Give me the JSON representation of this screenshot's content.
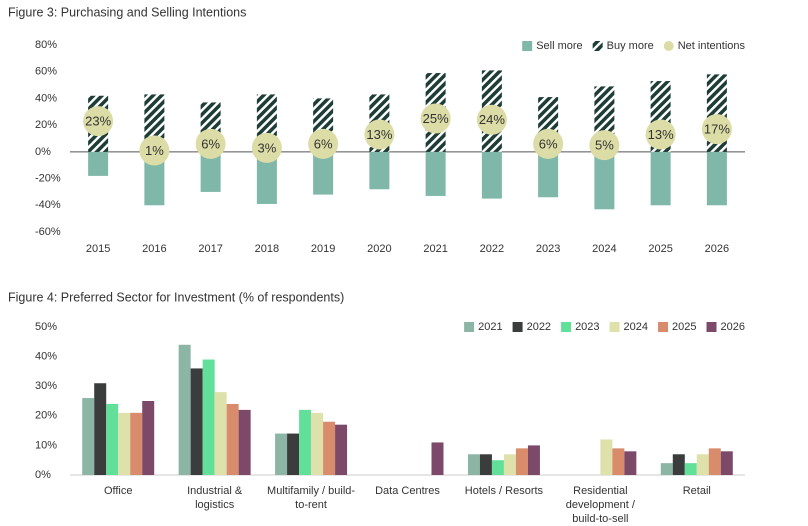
{
  "chart_data": [
    {
      "type": "bar",
      "title": "Figure 3: Purchasing and Selling Intentions",
      "stacked": true,
      "categories": [
        "2015",
        "2016",
        "2017",
        "2018",
        "2019",
        "2020",
        "2021",
        "2022",
        "2023",
        "2024",
        "2025",
        "2026"
      ],
      "series": [
        {
          "name": "Sell more",
          "color": "#7fb8a8",
          "values": [
            -18,
            -40,
            -30,
            -39,
            -32,
            -28,
            -33,
            -35,
            -34,
            -43,
            -40,
            -40
          ]
        },
        {
          "name": "Buy more",
          "color": "#1d3d36",
          "pattern": "hatch",
          "values": [
            42,
            43,
            37,
            43,
            40,
            43,
            59,
            61,
            41,
            49,
            53,
            58
          ]
        },
        {
          "name": "Net intentions",
          "color": "#dcdca6",
          "marker": "circle",
          "values": [
            23,
            1,
            6,
            3,
            6,
            13,
            25,
            24,
            6,
            5,
            13,
            17
          ],
          "value_labels": [
            "23%",
            "1%",
            "6%",
            "3%",
            "6%",
            "13%",
            "25%",
            "24%",
            "6%",
            "5%",
            "13%",
            "17%"
          ]
        }
      ],
      "ylim": [
        -60,
        80
      ],
      "yticks": [
        {
          "value": -60,
          "label": "-60%"
        },
        {
          "value": -40,
          "label": "-40%"
        },
        {
          "value": -20,
          "label": "-20%"
        },
        {
          "value": 0,
          "label": "0%"
        },
        {
          "value": 20,
          "label": "20%"
        },
        {
          "value": 40,
          "label": "40%"
        },
        {
          "value": 60,
          "label": "60%"
        },
        {
          "value": 80,
          "label": "80%"
        }
      ],
      "legend": "top-right"
    },
    {
      "type": "bar",
      "title": "Figure 4: Preferred Sector for Investment (% of respondents)",
      "categories": [
        "Office",
        "Industrial & logistics",
        "Multifamily / build-to-rent",
        "Data Centres",
        "Hotels / Resorts",
        "Residential development / build-to-sell",
        "Retail"
      ],
      "series": [
        {
          "name": "2021",
          "color": "#8db5a6",
          "values": [
            26,
            44,
            14,
            null,
            7,
            null,
            4
          ]
        },
        {
          "name": "2022",
          "color": "#3a3d3c",
          "values": [
            31,
            36,
            14,
            null,
            7,
            null,
            7
          ]
        },
        {
          "name": "2023",
          "color": "#62df98",
          "values": [
            24,
            39,
            22,
            null,
            5,
            null,
            4
          ]
        },
        {
          "name": "2024",
          "color": "#dfe1ab",
          "values": [
            21,
            28,
            21,
            null,
            7,
            12,
            7
          ]
        },
        {
          "name": "2025",
          "color": "#d98c6b",
          "values": [
            21,
            24,
            18,
            null,
            9,
            9,
            9
          ]
        },
        {
          "name": "2026",
          "color": "#7c4969",
          "values": [
            25,
            22,
            17,
            11,
            10,
            8,
            8
          ]
        }
      ],
      "ylim": [
        0,
        50
      ],
      "yticks": [
        {
          "value": 0,
          "label": "0%"
        },
        {
          "value": 10,
          "label": "10%"
        },
        {
          "value": 20,
          "label": "20%"
        },
        {
          "value": 30,
          "label": "30%"
        },
        {
          "value": 40,
          "label": "40%"
        },
        {
          "value": 50,
          "label": "50%"
        }
      ],
      "legend": "top-right"
    }
  ]
}
